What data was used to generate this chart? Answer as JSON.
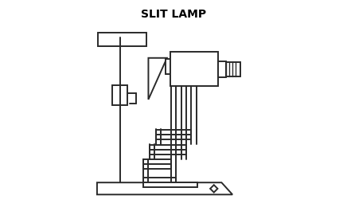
{
  "title": "SLIT LAMP",
  "title_fontsize": 10,
  "title_fontweight": "bold",
  "bg_color": "#ffffff",
  "line_color": "#2a2a2a",
  "line_width": 1.4,
  "fig_width": 4.36,
  "fig_height": 2.8,
  "dpi": 100
}
